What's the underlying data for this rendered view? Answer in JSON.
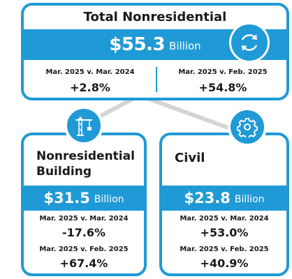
{
  "total": {
    "title": "Total Nonresidential",
    "amount": "$55.3",
    "unit": "Billion",
    "cmp1_label": "Mar. 2025 v. Mar. 2024",
    "cmp1_value": "+2.8%",
    "cmp2_label": "Mar. 2025 v. Feb. 2025",
    "cmp2_value": "+54.8%"
  },
  "building": {
    "title_line1": "Nonresidential",
    "title_line2": "Building",
    "amount": "$31.5",
    "unit": "Billion",
    "cmp1_label": "Mar. 2025 v. Mar. 2024",
    "cmp1_value": "-17.6%",
    "cmp2_label": "Mar. 2025 v. Feb. 2025",
    "cmp2_value": "+67.4%"
  },
  "civil": {
    "title": "Civil",
    "amount": "$23.8",
    "unit": "Billion",
    "cmp1_label": "Mar. 2025 v. Mar. 2024",
    "cmp1_value": "+53.0%",
    "cmp2_label": "Mar. 2025 v. Feb. 2025",
    "cmp2_value": "+40.9%"
  },
  "icons": {
    "total": "refresh-icon",
    "building": "crane-icon",
    "civil": "gear-icon"
  },
  "colors": {
    "accent": "#1f9ad6",
    "connector": "#d5d5d5"
  }
}
